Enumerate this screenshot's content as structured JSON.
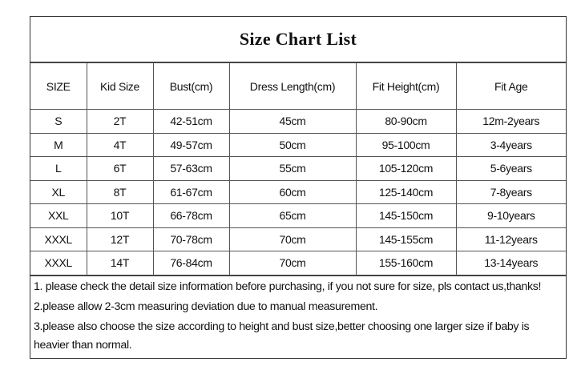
{
  "title": "Size Chart List",
  "table": {
    "headers": [
      "SIZE",
      "Kid Size",
      "Bust(cm)",
      "Dress Length(cm)",
      "Fit Height(cm)",
      "Fit Age"
    ],
    "rows": [
      [
        "S",
        "2T",
        "42-51cm",
        "45cm",
        "80-90cm",
        "12m-2years"
      ],
      [
        "M",
        "4T",
        "49-57cm",
        "50cm",
        "95-100cm",
        "3-4years"
      ],
      [
        "L",
        "6T",
        "57-63cm",
        "55cm",
        "105-120cm",
        "5-6years"
      ],
      [
        "XL",
        "8T",
        "61-67cm",
        "60cm",
        "125-140cm",
        "7-8years"
      ],
      [
        "XXL",
        "10T",
        "66-78cm",
        "65cm",
        "145-150cm",
        "9-10years"
      ],
      [
        "XXXL",
        "12T",
        "70-78cm",
        "70cm",
        "145-155cm",
        "11-12years"
      ],
      [
        "XXXL",
        "14T",
        "76-84cm",
        "70cm",
        "155-160cm",
        "13-14years"
      ]
    ]
  },
  "notes": [
    "1. please check the detail size information before purchasing, if you not sure for size, pls contact us,thanks!",
    "2.please allow 2-3cm measuring deviation due to manual measurement.",
    "3.please also choose the size according to height and bust size,better choosing one larger size if baby is heavier than normal."
  ]
}
